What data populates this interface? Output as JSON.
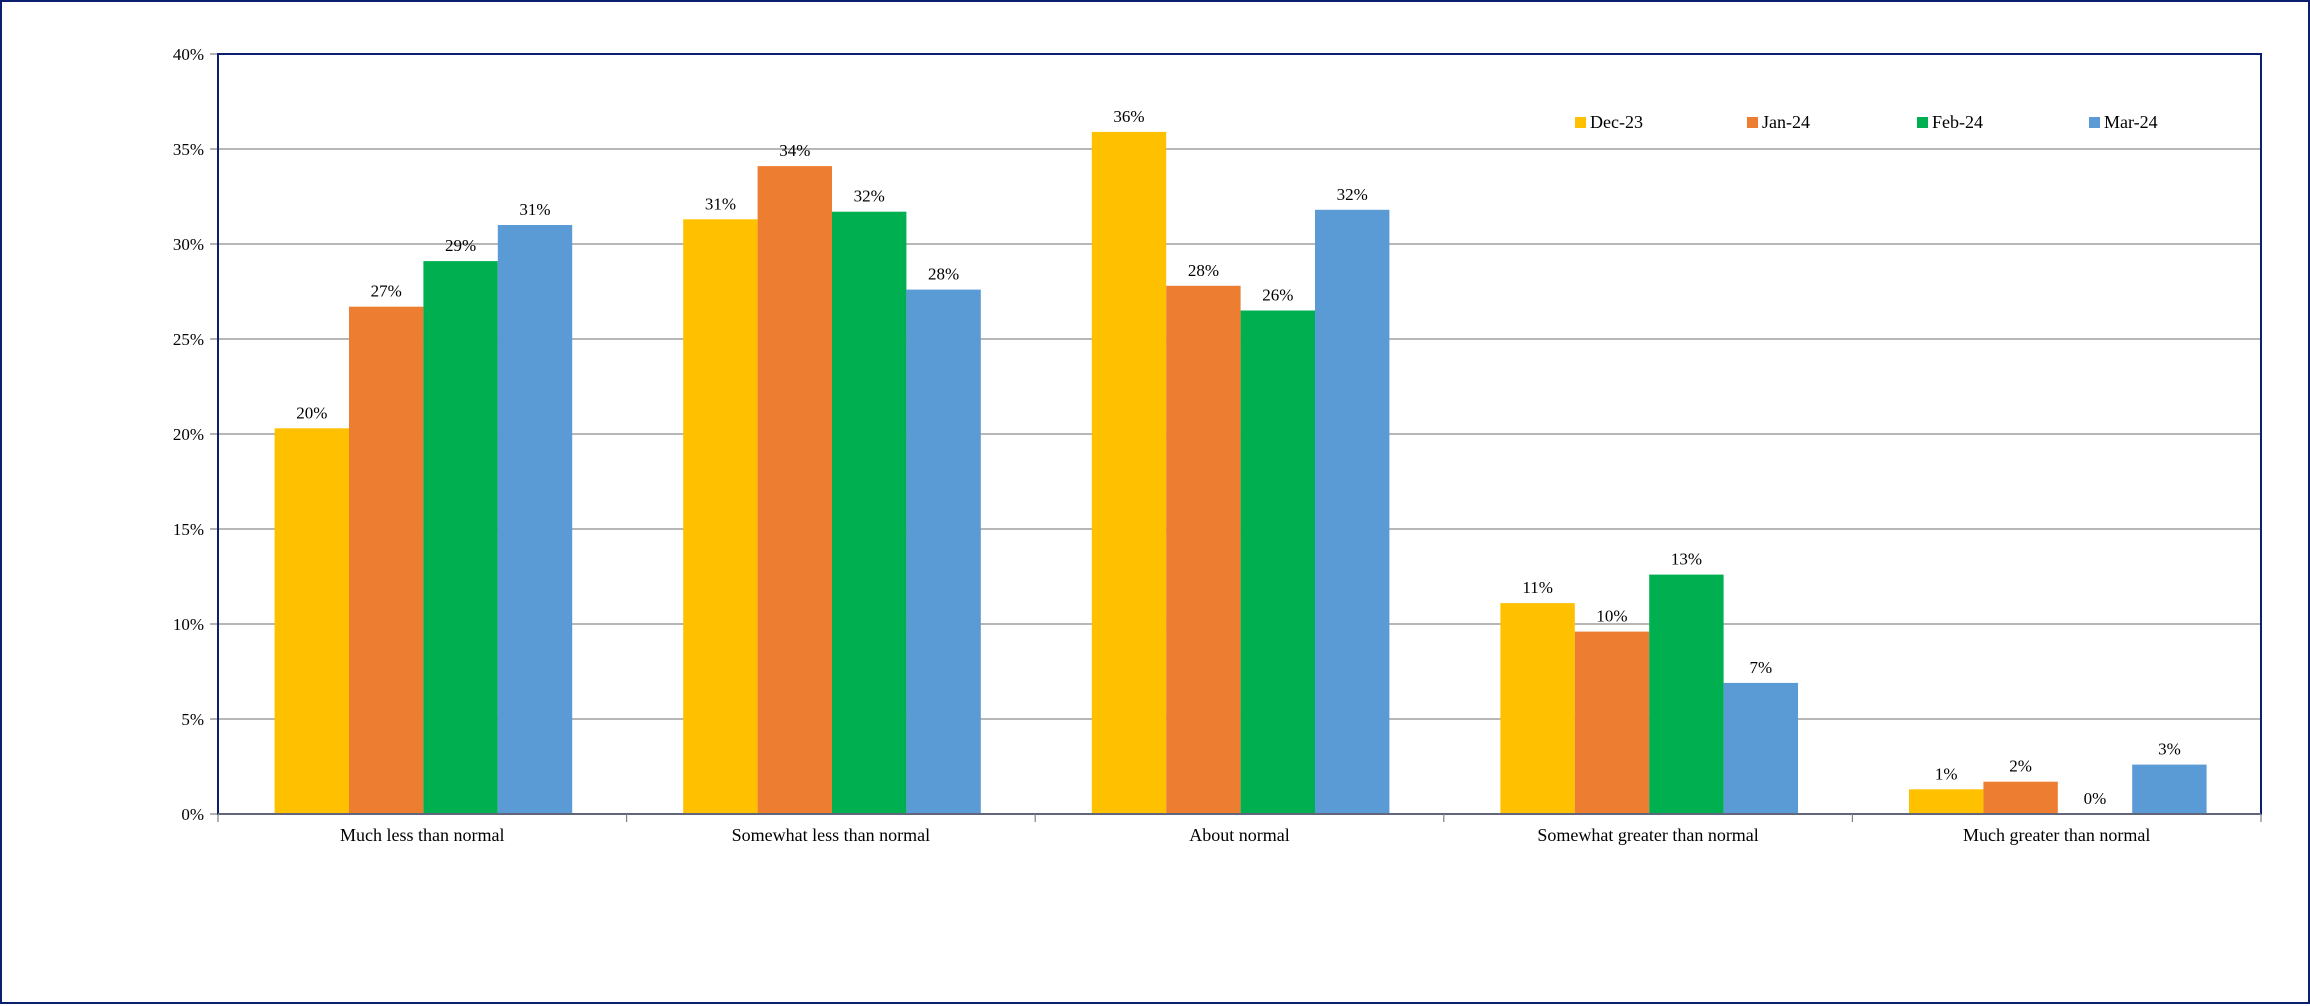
{
  "chart_data": {
    "type": "bar",
    "title": "",
    "xlabel": "",
    "ylabel": "",
    "ylim": [
      0,
      40
    ],
    "y_ticks": [
      "0%",
      "5%",
      "10%",
      "15%",
      "20%",
      "25%",
      "30%",
      "35%",
      "40%"
    ],
    "y_tick_values": [
      0,
      5,
      10,
      15,
      20,
      25,
      30,
      35,
      40
    ],
    "grid": true,
    "legend_position": "top-right",
    "categories": [
      "Much less than normal",
      "Somewhat less than normal",
      "About normal",
      "Somewhat greater than normal",
      "Much greater than normal"
    ],
    "series": [
      {
        "name": "Dec-23",
        "color": "#FFC000",
        "values": [
          20.3,
          31.3,
          35.9,
          11.1,
          1.3
        ],
        "labels": [
          "20%",
          "31%",
          "36%",
          "11%",
          "1%"
        ]
      },
      {
        "name": "Jan-24",
        "color": "#ED7D31",
        "values": [
          26.7,
          34.1,
          27.8,
          9.6,
          1.7
        ],
        "labels": [
          "27%",
          "34%",
          "28%",
          "10%",
          "2%"
        ]
      },
      {
        "name": "Feb-24",
        "color": "#00B050",
        "values": [
          29.1,
          31.7,
          26.5,
          12.6,
          0.0
        ],
        "labels": [
          "29%",
          "32%",
          "26%",
          "13%",
          "0%"
        ]
      },
      {
        "name": "Mar-24",
        "color": "#5B9BD5",
        "values": [
          31.0,
          27.6,
          31.8,
          6.9,
          2.6
        ],
        "labels": [
          "31%",
          "28%",
          "32%",
          "7%",
          "3%"
        ]
      }
    ],
    "colors": {
      "frame_border": "#0b1f6e",
      "plot_border": "#0b1f6e",
      "gridline": "#8c8c8c",
      "axis": "#7f7f7f"
    }
  }
}
